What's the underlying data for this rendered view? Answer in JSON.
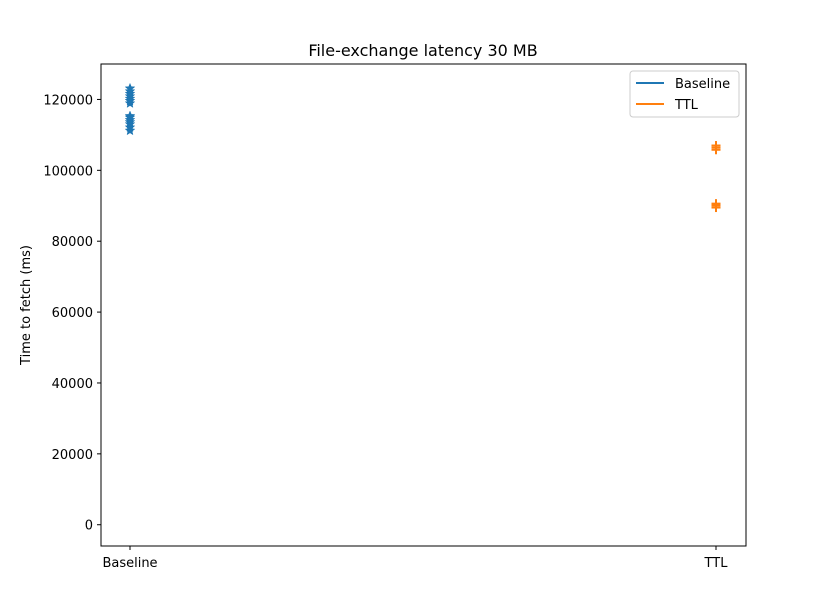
{
  "chart_data": {
    "type": "scatter",
    "title": "File-exchange latency 30 MB",
    "xlabel": "",
    "ylabel": "Time to fetch (ms)",
    "categories": [
      "Baseline",
      "TTL"
    ],
    "ylim": [
      -6000,
      130000
    ],
    "yticks": [
      0,
      20000,
      40000,
      60000,
      80000,
      100000,
      120000
    ],
    "grid": false,
    "legend_position": "top-right",
    "series": [
      {
        "name": "Baseline",
        "color": "#1f77b4",
        "marker": "star",
        "category": "Baseline",
        "values": [
          111200,
          112100,
          113000,
          113600,
          114200,
          114900,
          115300,
          118900,
          119600,
          120200,
          120900,
          121600,
          122300,
          123100
        ]
      },
      {
        "name": "TTL",
        "color": "#ff7f0e",
        "marker": "plus",
        "category": "TTL",
        "values": [
          89500,
          90100,
          90600,
          105800,
          106400,
          107000
        ]
      }
    ]
  }
}
